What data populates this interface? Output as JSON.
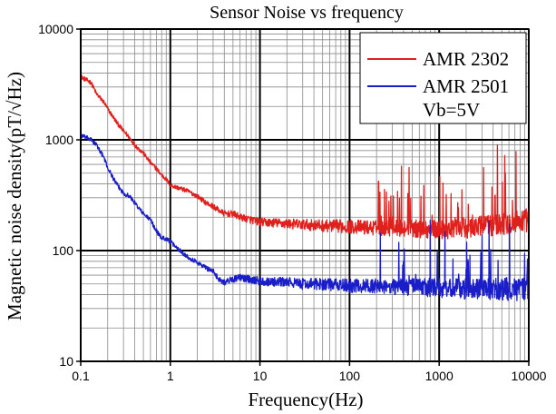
{
  "chart_data": {
    "type": "line",
    "title": "Sensor Noise vs frequency",
    "xlabel": "Frequency(Hz)",
    "ylabel": "Magnetic noise density(pT/√Hz)",
    "x_scale": "log",
    "y_scale": "log",
    "xlim": [
      0.1,
      10000
    ],
    "ylim": [
      10,
      10000
    ],
    "x_ticks": [
      {
        "value": 0.1,
        "label": "0.1"
      },
      {
        "value": 1,
        "label": "1"
      },
      {
        "value": 10,
        "label": "10"
      },
      {
        "value": 100,
        "label": "100"
      },
      {
        "value": 1000,
        "label": "1000"
      },
      {
        "value": 10000,
        "label": "10000"
      }
    ],
    "y_ticks": [
      {
        "value": 10,
        "label": "10"
      },
      {
        "value": 100,
        "label": "100"
      },
      {
        "value": 1000,
        "label": "1000"
      },
      {
        "value": 10000,
        "label": "10000"
      }
    ],
    "grid": true,
    "legend_position": "top-right",
    "legend_note": "Vb=5V",
    "series": [
      {
        "name": "AMR 2302",
        "color": "#e0201c",
        "x": [
          0.1,
          0.13,
          0.15,
          0.18,
          0.2,
          0.25,
          0.3,
          0.35,
          0.4,
          0.45,
          0.5,
          0.6,
          0.7,
          0.8,
          0.9,
          1,
          1.2,
          1.5,
          2,
          2.5,
          3,
          4,
          5,
          6,
          8,
          10,
          15,
          20,
          30,
          50,
          100,
          200,
          500,
          1000,
          2000,
          5000,
          10000
        ],
        "y": [
          3700,
          3300,
          2600,
          2200,
          1900,
          1450,
          1200,
          1050,
          900,
          820,
          760,
          620,
          550,
          480,
          440,
          390,
          370,
          350,
          310,
          270,
          250,
          215,
          215,
          200,
          190,
          180,
          178,
          175,
          172,
          168,
          165,
          160,
          158,
          155,
          160,
          175,
          190
        ]
      },
      {
        "name": "AMR 2501",
        "color": "#1a1ec8",
        "x": [
          0.1,
          0.13,
          0.15,
          0.18,
          0.2,
          0.25,
          0.3,
          0.35,
          0.4,
          0.5,
          0.6,
          0.7,
          0.8,
          0.9,
          1,
          1.2,
          1.5,
          2,
          2.5,
          3,
          3.5,
          4,
          5,
          6,
          8,
          10,
          15,
          20,
          30,
          50,
          100,
          200,
          500,
          1000,
          2000,
          5000,
          10000
        ],
        "y": [
          1100,
          1000,
          900,
          700,
          560,
          400,
          330,
          310,
          270,
          215,
          190,
          150,
          130,
          128,
          120,
          105,
          90,
          78,
          70,
          65,
          55,
          52,
          55,
          57,
          55,
          53,
          52,
          52,
          50,
          50,
          48,
          48,
          47,
          46,
          45,
          45,
          45
        ]
      }
    ]
  }
}
